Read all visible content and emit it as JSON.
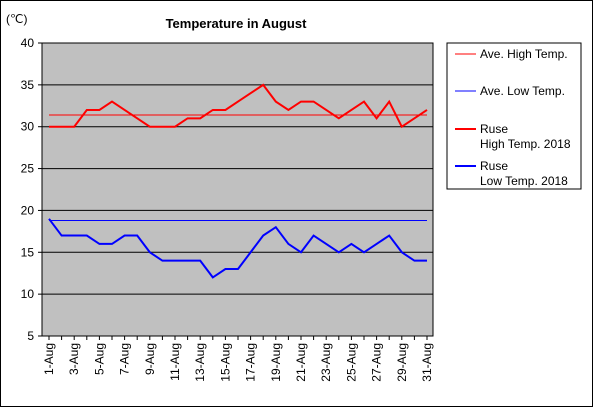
{
  "chart_data": {
    "type": "line",
    "title": "Temperature in August",
    "unit_label": "(℃)",
    "ylim": [
      5,
      40
    ],
    "y_ticks": [
      "5",
      "10",
      "15",
      "20",
      "25",
      "30",
      "35",
      "40"
    ],
    "x_tick_labels": [
      "1-Aug",
      "3-Aug",
      "5-Aug",
      "7-Aug",
      "9-Aug",
      "11-Aug",
      "13-Aug",
      "15-Aug",
      "17-Aug",
      "19-Aug",
      "21-Aug",
      "23-Aug",
      "25-Aug",
      "27-Aug",
      "29-Aug",
      "31-Aug"
    ],
    "x": [
      1,
      2,
      3,
      4,
      5,
      6,
      7,
      8,
      9,
      10,
      11,
      12,
      13,
      14,
      15,
      16,
      17,
      18,
      19,
      20,
      21,
      22,
      23,
      24,
      25,
      26,
      27,
      28,
      29,
      30,
      31
    ],
    "grid": true,
    "legend_placement": "right",
    "series": [
      {
        "name": "Ave. High Temp.",
        "color": "#ff0000",
        "style": "thin",
        "values": [
          31.4,
          31.4,
          31.4,
          31.4,
          31.4,
          31.4,
          31.4,
          31.4,
          31.4,
          31.4,
          31.4,
          31.4,
          31.4,
          31.4,
          31.4,
          31.4,
          31.4,
          31.4,
          31.4,
          31.4,
          31.4,
          31.4,
          31.4,
          31.4,
          31.4,
          31.4,
          31.4,
          31.4,
          31.4,
          31.4,
          31.4
        ]
      },
      {
        "name": "Ave. Low Temp.",
        "color": "#0000ff",
        "style": "thin",
        "values": [
          18.8,
          18.8,
          18.8,
          18.8,
          18.8,
          18.8,
          18.8,
          18.8,
          18.8,
          18.8,
          18.8,
          18.8,
          18.8,
          18.8,
          18.8,
          18.8,
          18.8,
          18.8,
          18.8,
          18.8,
          18.8,
          18.8,
          18.8,
          18.8,
          18.8,
          18.8,
          18.8,
          18.8,
          18.8,
          18.8,
          18.8
        ]
      },
      {
        "name": "Ruse High Temp. 2018",
        "legend_lines": [
          "Ruse",
          "High Temp. 2018"
        ],
        "color": "#ff0000",
        "style": "thick",
        "values": [
          30,
          30,
          30,
          32,
          32,
          33,
          32,
          31,
          30,
          30,
          30,
          31,
          31,
          32,
          32,
          33,
          34,
          35,
          33,
          32,
          33,
          33,
          32,
          31,
          32,
          33,
          31,
          33,
          30,
          31,
          32
        ]
      },
      {
        "name": "Ruse Low Temp. 2018",
        "legend_lines": [
          "Ruse",
          "Low Temp. 2018"
        ],
        "color": "#0000ff",
        "style": "thick",
        "values": [
          19,
          17,
          17,
          17,
          16,
          16,
          17,
          17,
          15,
          14,
          14,
          14,
          14,
          12,
          13,
          13,
          15,
          17,
          18,
          16,
          15,
          17,
          16,
          15,
          16,
          15,
          16,
          17,
          15,
          14,
          14
        ]
      }
    ]
  }
}
